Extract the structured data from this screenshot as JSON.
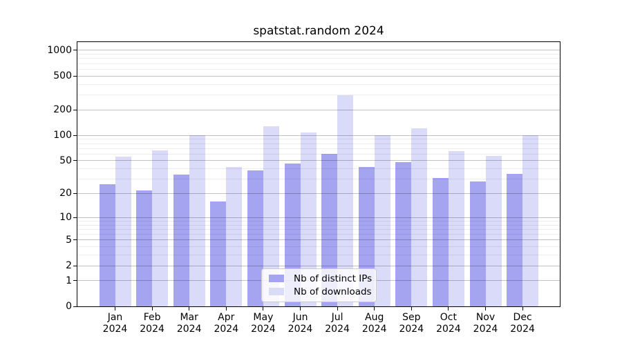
{
  "figure": {
    "title": "spatstat.random 2024",
    "background": "#ffffff"
  },
  "chart_data": {
    "type": "bar",
    "title": "spatstat.random 2024",
    "categories": [
      "Jan",
      "Feb",
      "Mar",
      "Apr",
      "May",
      "Jun",
      "Jul",
      "Aug",
      "Sep",
      "Oct",
      "Nov",
      "Dec"
    ],
    "year_label": "2024",
    "series": [
      {
        "name": "Nb of distinct IPs",
        "color": "#a4a4f1",
        "values": [
          26,
          22,
          34,
          16,
          38,
          46,
          60,
          42,
          48,
          31,
          28,
          35
        ]
      },
      {
        "name": "Nb of downloads",
        "color": "#dadaf9",
        "values": [
          56,
          66,
          100,
          42,
          127,
          108,
          300,
          100,
          120,
          65,
          57,
          100
        ]
      }
    ],
    "xlabel": "",
    "ylabel": "",
    "yscale": "log1p",
    "ylim": [
      0,
      1250
    ],
    "yticks": [
      1000,
      500,
      200,
      100,
      50,
      20,
      10,
      5,
      2,
      1,
      0
    ],
    "minor_gridlines": [
      3,
      4,
      6,
      7,
      8,
      9,
      30,
      40,
      60,
      70,
      80,
      90,
      300,
      400,
      600,
      700,
      800,
      900
    ],
    "grid": "horizontal, gridlines drawn over bars",
    "legend_position": "inside lower-center"
  },
  "colors": {
    "grid_major": "#c3c3c3",
    "grid_minor": "#ebebeb",
    "spine": "#000000",
    "legend_border": "#cccccc"
  }
}
